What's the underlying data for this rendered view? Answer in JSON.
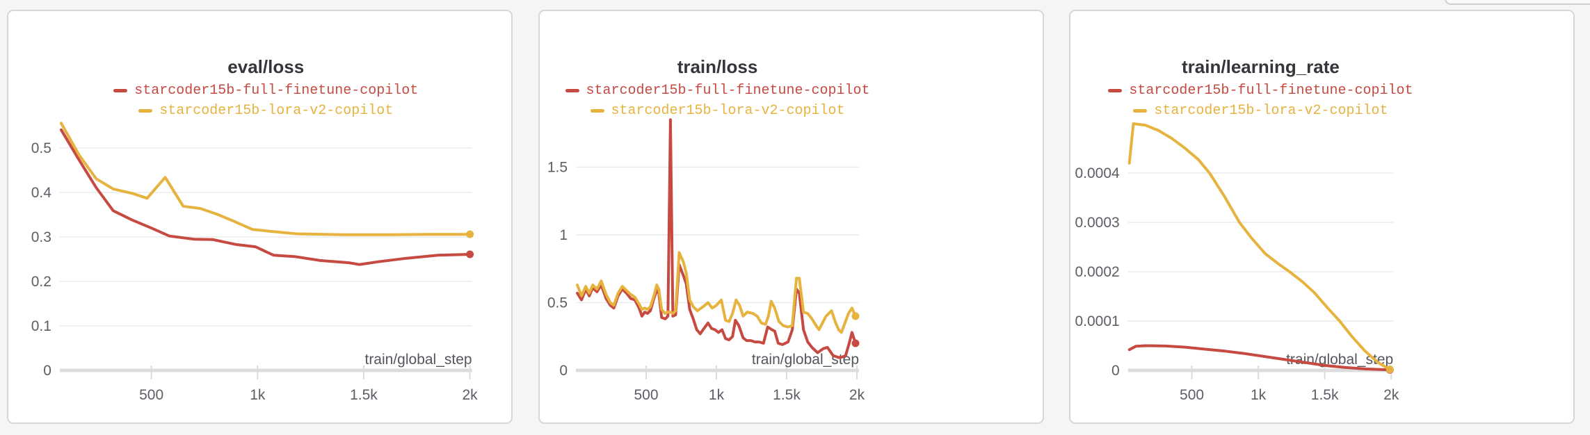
{
  "page": {
    "background_color": "#f5f5f6",
    "panel_border_color": "#d6d6d6",
    "note": "partial edge of another chart panel clipped at top-right"
  },
  "colors": {
    "run_red": "#c64a42",
    "run_gold": "#e7b33f",
    "grid": "#eaeaea",
    "axis": "#dcdcdc",
    "tick_text": "#5d5d66",
    "axis_label_text": "#55555e",
    "title_text": "#35353b"
  },
  "chart_data": [
    {
      "type": "line",
      "title": "eval/loss",
      "xlabel": "train/global_step",
      "ylabel": "",
      "grid": true,
      "legend_position": "top-center",
      "xlim": [
        75,
        2005
      ],
      "ylim": [
        0,
        0.565
      ],
      "x_ticks": [
        {
          "value": 500,
          "label": "500"
        },
        {
          "value": 1000,
          "label": "1k"
        },
        {
          "value": 1500,
          "label": "1.5k"
        },
        {
          "value": 2000,
          "label": "2k"
        }
      ],
      "y_ticks": [
        {
          "value": 0,
          "label": "0"
        },
        {
          "value": 0.1,
          "label": "0.1"
        },
        {
          "value": 0.2,
          "label": "0.2"
        },
        {
          "value": 0.3,
          "label": "0.3"
        },
        {
          "value": 0.4,
          "label": "0.4"
        },
        {
          "value": 0.5,
          "label": "0.5"
        }
      ],
      "series": [
        {
          "name": "starcoder15b-full-finetune-copilot",
          "color": "#c64a42",
          "end_dot": true,
          "points": [
            [
              75,
              0.541
            ],
            [
              160,
              0.473
            ],
            [
              240,
              0.411
            ],
            [
              320,
              0.359
            ],
            [
              410,
              0.338
            ],
            [
              500,
              0.32
            ],
            [
              585,
              0.302
            ],
            [
              700,
              0.295
            ],
            [
              790,
              0.294
            ],
            [
              900,
              0.283
            ],
            [
              990,
              0.278
            ],
            [
              1075,
              0.259
            ],
            [
              1175,
              0.256
            ],
            [
              1295,
              0.247
            ],
            [
              1430,
              0.242
            ],
            [
              1480,
              0.238
            ],
            [
              1565,
              0.244
            ],
            [
              1700,
              0.252
            ],
            [
              1850,
              0.259
            ],
            [
              2000,
              0.261
            ]
          ]
        },
        {
          "name": "starcoder15b-lora-v2-copilot",
          "color": "#e7b33f",
          "end_dot": true,
          "points": [
            [
              75,
              0.556
            ],
            [
              160,
              0.484
            ],
            [
              240,
              0.431
            ],
            [
              320,
              0.408
            ],
            [
              410,
              0.398
            ],
            [
              480,
              0.387
            ],
            [
              565,
              0.434
            ],
            [
              650,
              0.369
            ],
            [
              730,
              0.364
            ],
            [
              810,
              0.351
            ],
            [
              900,
              0.333
            ],
            [
              975,
              0.317
            ],
            [
              1055,
              0.313
            ],
            [
              1185,
              0.307
            ],
            [
              1400,
              0.305
            ],
            [
              1630,
              0.305
            ],
            [
              1800,
              0.306
            ],
            [
              2000,
              0.306
            ]
          ]
        }
      ]
    },
    {
      "type": "line",
      "title": "train/loss",
      "xlabel": "train/global_step",
      "ylabel": "",
      "grid": true,
      "legend_position": "top-center",
      "xlim": [
        10,
        2000
      ],
      "ylim": [
        0,
        1.87
      ],
      "x_ticks": [
        {
          "value": 500,
          "label": "500"
        },
        {
          "value": 1000,
          "label": "1k"
        },
        {
          "value": 1500,
          "label": "1.5k"
        },
        {
          "value": 2000,
          "label": "2k"
        }
      ],
      "y_ticks": [
        {
          "value": 0,
          "label": "0"
        },
        {
          "value": 0.5,
          "label": "0.5"
        },
        {
          "value": 1,
          "label": "1"
        },
        {
          "value": 1.5,
          "label": "1.5"
        }
      ],
      "series": [
        {
          "name": "starcoder15b-full-finetune-copilot",
          "color": "#c64a42",
          "end_dot": true,
          "points": [
            [
              10,
              0.57
            ],
            [
              40,
              0.52
            ],
            [
              70,
              0.6
            ],
            [
              95,
              0.55
            ],
            [
              120,
              0.61
            ],
            [
              150,
              0.58
            ],
            [
              180,
              0.63
            ],
            [
              215,
              0.53
            ],
            [
              245,
              0.48
            ],
            [
              270,
              0.46
            ],
            [
              300,
              0.55
            ],
            [
              330,
              0.6
            ],
            [
              360,
              0.57
            ],
            [
              390,
              0.53
            ],
            [
              420,
              0.52
            ],
            [
              450,
              0.46
            ],
            [
              470,
              0.4
            ],
            [
              490,
              0.43
            ],
            [
              510,
              0.42
            ],
            [
              530,
              0.44
            ],
            [
              555,
              0.53
            ],
            [
              575,
              0.59
            ],
            [
              590,
              0.57
            ],
            [
              610,
              0.39
            ],
            [
              635,
              0.38
            ],
            [
              655,
              0.4
            ],
            [
              673,
              1.85
            ],
            [
              690,
              0.4
            ],
            [
              710,
              0.41
            ],
            [
              735,
              0.78
            ],
            [
              765,
              0.7
            ],
            [
              785,
              0.64
            ],
            [
              810,
              0.45
            ],
            [
              835,
              0.38
            ],
            [
              860,
              0.3
            ],
            [
              885,
              0.27
            ],
            [
              905,
              0.3
            ],
            [
              940,
              0.35
            ],
            [
              965,
              0.31
            ],
            [
              990,
              0.3
            ],
            [
              1015,
              0.28
            ],
            [
              1040,
              0.3
            ],
            [
              1065,
              0.235
            ],
            [
              1090,
              0.225
            ],
            [
              1115,
              0.25
            ],
            [
              1135,
              0.37
            ],
            [
              1160,
              0.33
            ],
            [
              1190,
              0.24
            ],
            [
              1215,
              0.22
            ],
            [
              1245,
              0.22
            ],
            [
              1275,
              0.21
            ],
            [
              1305,
              0.21
            ],
            [
              1335,
              0.2
            ],
            [
              1365,
              0.32
            ],
            [
              1395,
              0.3
            ],
            [
              1415,
              0.29
            ],
            [
              1440,
              0.2
            ],
            [
              1470,
              0.19
            ],
            [
              1510,
              0.21
            ],
            [
              1540,
              0.3
            ],
            [
              1570,
              0.6
            ],
            [
              1590,
              0.57
            ],
            [
              1620,
              0.3
            ],
            [
              1650,
              0.21
            ],
            [
              1680,
              0.17
            ],
            [
              1720,
              0.13
            ],
            [
              1760,
              0.16
            ],
            [
              1790,
              0.17
            ],
            [
              1830,
              0.11
            ],
            [
              1870,
              0.095
            ],
            [
              1900,
              0.1
            ],
            [
              1920,
              0.11
            ],
            [
              1945,
              0.2
            ],
            [
              1965,
              0.28
            ],
            [
              1990,
              0.2
            ]
          ]
        },
        {
          "name": "starcoder15b-lora-v2-copilot",
          "color": "#e7b33f",
          "end_dot": true,
          "points": [
            [
              10,
              0.63
            ],
            [
              40,
              0.55
            ],
            [
              70,
              0.62
            ],
            [
              95,
              0.57
            ],
            [
              120,
              0.63
            ],
            [
              150,
              0.6
            ],
            [
              180,
              0.66
            ],
            [
              215,
              0.56
            ],
            [
              245,
              0.5
            ],
            [
              270,
              0.48
            ],
            [
              300,
              0.57
            ],
            [
              330,
              0.62
            ],
            [
              360,
              0.59
            ],
            [
              390,
              0.56
            ],
            [
              420,
              0.54
            ],
            [
              450,
              0.49
            ],
            [
              470,
              0.45
            ],
            [
              490,
              0.46
            ],
            [
              510,
              0.45
            ],
            [
              530,
              0.47
            ],
            [
              555,
              0.55
            ],
            [
              575,
              0.63
            ],
            [
              590,
              0.6
            ],
            [
              610,
              0.45
            ],
            [
              635,
              0.42
            ],
            [
              655,
              0.43
            ],
            [
              673,
              0.43
            ],
            [
              690,
              0.42
            ],
            [
              710,
              0.44
            ],
            [
              735,
              0.87
            ],
            [
              765,
              0.8
            ],
            [
              785,
              0.72
            ],
            [
              810,
              0.52
            ],
            [
              835,
              0.47
            ],
            [
              865,
              0.44
            ],
            [
              905,
              0.47
            ],
            [
              940,
              0.5
            ],
            [
              970,
              0.46
            ],
            [
              1000,
              0.48
            ],
            [
              1035,
              0.52
            ],
            [
              1065,
              0.37
            ],
            [
              1090,
              0.36
            ],
            [
              1115,
              0.42
            ],
            [
              1140,
              0.52
            ],
            [
              1165,
              0.48
            ],
            [
              1190,
              0.4
            ],
            [
              1220,
              0.43
            ],
            [
              1260,
              0.42
            ],
            [
              1290,
              0.4
            ],
            [
              1320,
              0.35
            ],
            [
              1350,
              0.34
            ],
            [
              1370,
              0.4
            ],
            [
              1390,
              0.51
            ],
            [
              1415,
              0.46
            ],
            [
              1445,
              0.36
            ],
            [
              1475,
              0.33
            ],
            [
              1510,
              0.32
            ],
            [
              1540,
              0.33
            ],
            [
              1570,
              0.68
            ],
            [
              1590,
              0.68
            ],
            [
              1620,
              0.43
            ],
            [
              1650,
              0.42
            ],
            [
              1680,
              0.38
            ],
            [
              1710,
              0.33
            ],
            [
              1730,
              0.3
            ],
            [
              1755,
              0.35
            ],
            [
              1780,
              0.4
            ],
            [
              1800,
              0.42
            ],
            [
              1820,
              0.44
            ],
            [
              1845,
              0.36
            ],
            [
              1870,
              0.3
            ],
            [
              1890,
              0.28
            ],
            [
              1915,
              0.35
            ],
            [
              1940,
              0.42
            ],
            [
              1965,
              0.46
            ],
            [
              1990,
              0.4
            ]
          ]
        }
      ]
    },
    {
      "type": "line",
      "title": "train/learning_rate",
      "xlabel": "train/global_step",
      "ylabel": "",
      "grid": true,
      "legend_position": "top-center",
      "xlim": [
        30,
        2000
      ],
      "ylim": [
        0,
        0.0005
      ],
      "x_ticks": [
        {
          "value": 500,
          "label": "500"
        },
        {
          "value": 1000,
          "label": "1k"
        },
        {
          "value": 1500,
          "label": "1.5k"
        },
        {
          "value": 2000,
          "label": "2k"
        }
      ],
      "y_ticks": [
        {
          "value": 0,
          "label": "0"
        },
        {
          "value": 0.0001,
          "label": "0.0001"
        },
        {
          "value": 0.0002,
          "label": "0.0002"
        },
        {
          "value": 0.0003,
          "label": "0.0003"
        },
        {
          "value": 0.0004,
          "label": "0.0004"
        }
      ],
      "series": [
        {
          "name": "starcoder15b-full-finetune-copilot",
          "color": "#c64a42",
          "end_dot": true,
          "points": [
            [
              30,
              4.2e-05
            ],
            [
              80,
              4.9e-05
            ],
            [
              150,
              5e-05
            ],
            [
              300,
              4.95e-05
            ],
            [
              450,
              4.7e-05
            ],
            [
              600,
              4.3e-05
            ],
            [
              750,
              3.9e-05
            ],
            [
              900,
              3.4e-05
            ],
            [
              1050,
              2.8e-05
            ],
            [
              1200,
              2.2e-05
            ],
            [
              1350,
              1.6e-05
            ],
            [
              1500,
              1e-05
            ],
            [
              1650,
              6e-06
            ],
            [
              1800,
              3e-06
            ],
            [
              1990,
              1e-06
            ]
          ]
        },
        {
          "name": "starcoder15b-lora-v2-copilot",
          "color": "#e7b33f",
          "end_dot": true,
          "points": [
            [
              30,
              0.00042
            ],
            [
              60,
              0.0005
            ],
            [
              150,
              0.000497
            ],
            [
              250,
              0.000486
            ],
            [
              350,
              0.00047
            ],
            [
              450,
              0.00045
            ],
            [
              550,
              0.000427
            ],
            [
              633,
              0.0004
            ],
            [
              740,
              0.000355
            ],
            [
              858,
              0.0003
            ],
            [
              950,
              0.000268
            ],
            [
              1050,
              0.000237
            ],
            [
              1150,
              0.000216
            ],
            [
              1235,
              0.0002
            ],
            [
              1330,
              0.00018
            ],
            [
              1420,
              0.000158
            ],
            [
              1520,
              0.000127
            ],
            [
              1612,
              0.0001
            ],
            [
              1700,
              7e-05
            ],
            [
              1800,
              4e-05
            ],
            [
              1900,
              1.6e-05
            ],
            [
              1990,
              2e-06
            ]
          ]
        }
      ]
    }
  ]
}
